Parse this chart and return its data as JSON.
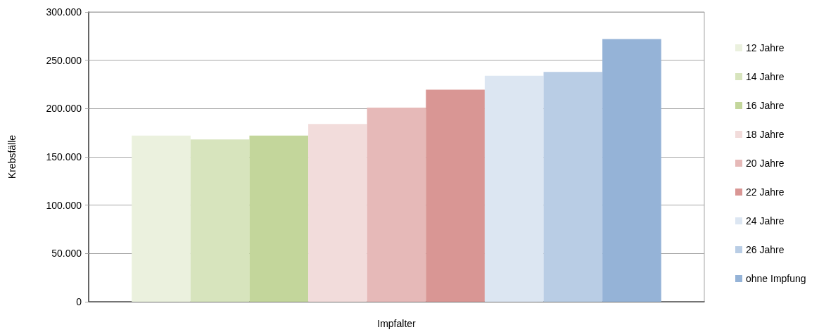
{
  "chart_data": {
    "type": "bar",
    "xlabel": "Impfalter",
    "ylabel": "Krebsfälle",
    "categories": [
      null
    ],
    "series": [
      {
        "name": "12 Jahre",
        "color": "#ebf1de",
        "values": [
          172000
        ]
      },
      {
        "name": "14 Jahre",
        "color": "#d7e4bd",
        "values": [
          168000
        ]
      },
      {
        "name": "16 Jahre",
        "color": "#c3d69b",
        "values": [
          172000
        ]
      },
      {
        "name": "18 Jahre",
        "color": "#f2dcdb",
        "values": [
          184000
        ]
      },
      {
        "name": "20 Jahre",
        "color": "#e6b9b8",
        "values": [
          201000
        ]
      },
      {
        "name": "22 Jahre",
        "color": "#d99694",
        "values": [
          219500
        ]
      },
      {
        "name": "24 Jahre",
        "color": "#dce6f2",
        "values": [
          234000
        ]
      },
      {
        "name": "26 Jahre",
        "color": "#b9cde5",
        "values": [
          238000
        ]
      },
      {
        "name": "ohne Impfung",
        "color": "#95b3d7",
        "values": [
          272000
        ]
      }
    ],
    "ylim": [
      0,
      300000
    ],
    "yticks": [
      0,
      {
        "value": 50000,
        "label": "50.000"
      },
      {
        "value": 100000,
        "label": "100.000"
      },
      {
        "value": 150000,
        "label": "150.000"
      },
      {
        "value": 200000,
        "label": "200.000"
      },
      {
        "value": 250000,
        "label": "250.000"
      },
      {
        "value": 300000,
        "label": "300.000"
      }
    ],
    "grid": "y",
    "legend": "right",
    "tick_labels": "y"
  }
}
